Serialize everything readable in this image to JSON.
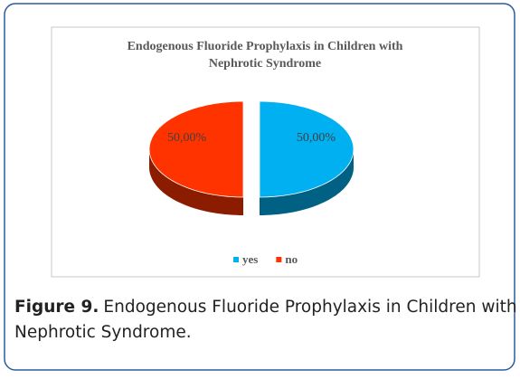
{
  "chart_data": {
    "type": "pie",
    "title": [
      "Endogenous Fluoride Prophylaxis in Children with",
      "Nephrotic Syndrome"
    ],
    "categories": [
      "yes",
      "no"
    ],
    "values": [
      50,
      50
    ],
    "value_labels": [
      "50,00%",
      "50,00%"
    ],
    "colors": [
      "#00b0f0",
      "#ff3300"
    ]
  },
  "caption": {
    "label": "Figure 9.",
    "text": "Endogenous Fluoride Prophylaxis in Children with",
    "text2": "Nephrotic Syndrome."
  }
}
